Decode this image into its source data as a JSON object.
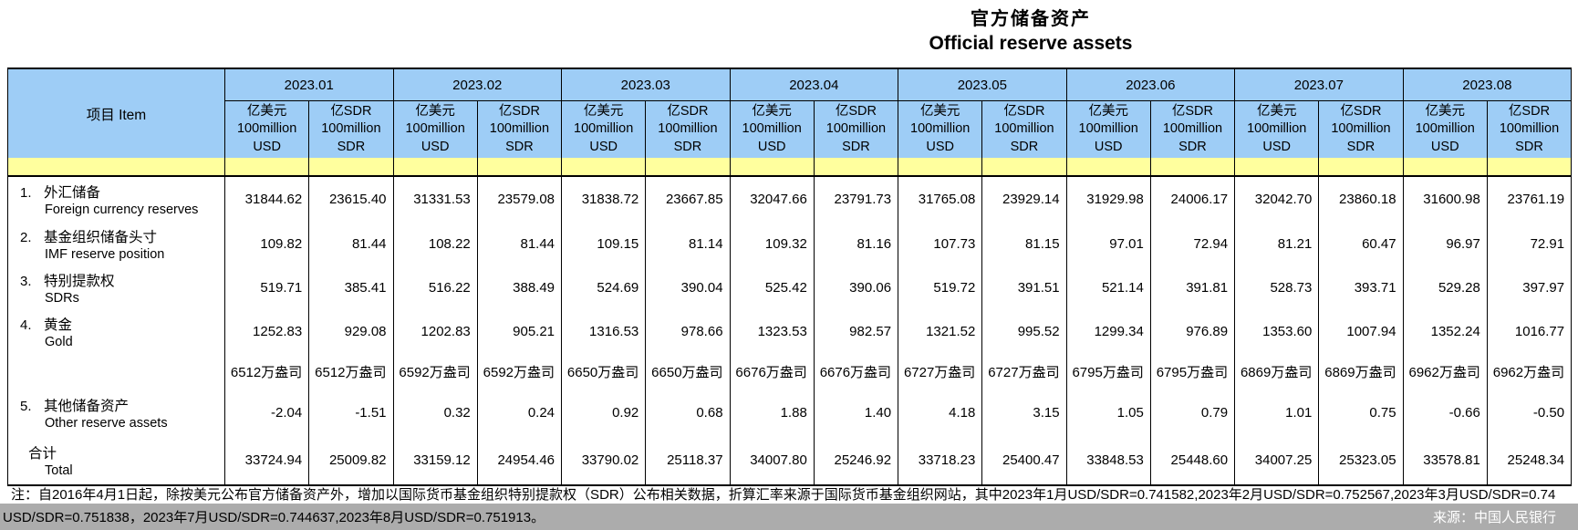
{
  "title": {
    "zh": "官方储备资产",
    "en": "Official reserve assets"
  },
  "table": {
    "item_header": "项目  Item",
    "months": [
      "2023.01",
      "2023.02",
      "2023.03",
      "2023.04",
      "2023.05",
      "2023.06",
      "2023.07",
      "2023.08"
    ],
    "unit_usd": "亿美元\n100million\nUSD",
    "unit_sdr": "亿SDR\n100million\nSDR",
    "rows": [
      {
        "num": "1.",
        "zh": "外汇储备",
        "en": "Foreign currency reserves",
        "values": [
          "31844.62",
          "23615.40",
          "31331.53",
          "23579.08",
          "31838.72",
          "23667.85",
          "32047.66",
          "23791.73",
          "31765.08",
          "23929.14",
          "31929.98",
          "24006.17",
          "32042.70",
          "23860.18",
          "31600.98",
          "23761.19"
        ]
      },
      {
        "num": "2.",
        "zh": "基金组织储备头寸",
        "en": "IMF reserve position",
        "values": [
          "109.82",
          "81.44",
          "108.22",
          "81.44",
          "109.15",
          "81.14",
          "109.32",
          "81.16",
          "107.73",
          "81.15",
          "97.01",
          "72.94",
          "81.21",
          "60.47",
          "96.97",
          "72.91"
        ]
      },
      {
        "num": "3.",
        "zh": "特别提款权",
        "en": "SDRs",
        "values": [
          "519.71",
          "385.41",
          "516.22",
          "388.49",
          "524.69",
          "390.04",
          "525.42",
          "390.06",
          "519.72",
          "391.51",
          "521.14",
          "391.81",
          "528.73",
          "393.71",
          "529.28",
          "397.97"
        ]
      },
      {
        "num": "4.",
        "zh": "黄金",
        "en": "Gold",
        "values": [
          "1252.83",
          "929.08",
          "1202.83",
          "905.21",
          "1316.53",
          "978.66",
          "1323.53",
          "982.57",
          "1321.52",
          "995.52",
          "1299.34",
          "976.89",
          "1353.60",
          "1007.94",
          "1352.24",
          "1016.77"
        ]
      },
      {
        "num": "",
        "zh": "",
        "en": "",
        "values": [
          "6512万盎司",
          "6512万盎司",
          "6592万盎司",
          "6592万盎司",
          "6650万盎司",
          "6650万盎司",
          "6676万盎司",
          "6676万盎司",
          "6727万盎司",
          "6727万盎司",
          "6795万盎司",
          "6795万盎司",
          "6869万盎司",
          "6869万盎司",
          "6962万盎司",
          "6962万盎司"
        ]
      },
      {
        "num": "5.",
        "zh": "其他储备资产",
        "en": "Other reserve assets",
        "values": [
          "-2.04",
          "-1.51",
          "0.32",
          "0.24",
          "0.92",
          "0.68",
          "1.88",
          "1.40",
          "4.18",
          "3.15",
          "1.05",
          "0.79",
          "1.01",
          "0.75",
          "-0.66",
          "-0.50"
        ]
      },
      {
        "num": "",
        "zh": "合计",
        "en": "Total",
        "values": [
          "33724.94",
          "25009.82",
          "33159.12",
          "24954.46",
          "33790.02",
          "25118.37",
          "34007.80",
          "25246.92",
          "33718.23",
          "25400.47",
          "33848.53",
          "25448.60",
          "34007.25",
          "25323.05",
          "33578.81",
          "25248.34"
        ]
      }
    ]
  },
  "notes": {
    "line1": "注：自2016年4月1日起，除按美元公布官方储备资产外，增加以国际货币基金组织特别提款权（SDR）公布相关数据，折算汇率来源于国际货币基金组织网站，其中2023年1月USD/SDR=0.741582,2023年2月USD/SDR=0.752567,2023年3月USD/SDR=0.74",
    "line2": "USD/SDR=0.751838，2023年7月USD/SDR=0.744637,2023年8月USD/SDR=0.751913。"
  },
  "source": "来源：中国人民银行",
  "colors": {
    "header_blue": "#9ECDF6",
    "band_yellow": "#FFFF9E",
    "footer_grey": "#ACACAC"
  }
}
